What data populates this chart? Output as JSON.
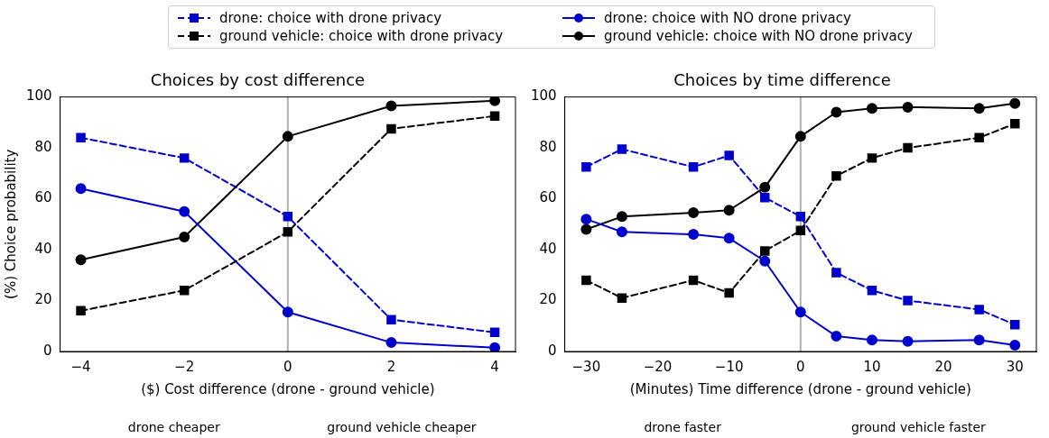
{
  "chart_data": [
    {
      "type": "line",
      "title": "Choices by cost difference",
      "xlabel": "($) Cost difference (drone - ground vehicle)",
      "ylabel": "(%) Choice probability",
      "x": [
        -4,
        -2,
        0,
        2,
        4
      ],
      "xlim": [
        -4.4,
        4.4
      ],
      "xticks": [
        -4,
        -2,
        0,
        2,
        4
      ],
      "ylim": [
        0,
        100
      ],
      "yticks": [
        0,
        20,
        40,
        60,
        80,
        100
      ],
      "grid": false,
      "legend": "top",
      "ref_lines": [
        {
          "axis": "x",
          "value": 0,
          "color": "#b0b0b0"
        }
      ],
      "annotations": [
        "drone cheaper",
        "ground vehicle cheaper"
      ],
      "series": [
        {
          "name": "drone: choice with drone privacy",
          "color": "#0000cc",
          "marker": "square",
          "line_style": "dashed",
          "values": [
            84,
            76,
            53,
            12.5,
            7.5
          ]
        },
        {
          "name": "ground vehicle: choice with drone privacy",
          "color": "#000000",
          "marker": "square",
          "line_style": "dashed",
          "values": [
            16,
            24,
            47,
            87.5,
            92.5
          ]
        },
        {
          "name": "drone: choice with NO drone privacy",
          "color": "#0000cc",
          "marker": "circle",
          "line_style": "solid",
          "values": [
            64,
            55,
            15.5,
            3.5,
            1.5
          ]
        },
        {
          "name": "ground vehicle: choice with NO drone privacy",
          "color": "#000000",
          "marker": "circle",
          "line_style": "solid",
          "values": [
            36,
            45,
            84.5,
            96.5,
            98.5
          ]
        }
      ]
    },
    {
      "type": "line",
      "title": "Choices by time difference",
      "xlabel": "(Minutes) Time difference (drone - ground vehicle)",
      "x": [
        -30,
        -25,
        -15,
        -10,
        -5,
        0,
        5,
        10,
        15,
        25,
        30
      ],
      "xlim": [
        -33,
        33
      ],
      "xticks": [
        -30,
        -20,
        -10,
        0,
        10,
        20,
        30
      ],
      "ylim": [
        0,
        100
      ],
      "yticks": [
        0,
        20,
        40,
        60,
        80,
        100
      ],
      "grid": false,
      "ref_lines": [
        {
          "axis": "x",
          "value": 0,
          "color": "#b0b0b0"
        }
      ],
      "annotations": [
        "drone faster",
        "ground vehicle faster"
      ],
      "series": [
        {
          "color": "#0000cc",
          "marker": "square",
          "line_style": "dashed",
          "values": [
            72.5,
            79.5,
            72.5,
            77,
            60.5,
            53,
            31,
            24,
            20,
            16.5,
            10.5
          ]
        },
        {
          "color": "#000000",
          "marker": "square",
          "line_style": "dashed",
          "values": [
            28,
            21,
            28,
            23,
            39.5,
            47.5,
            69,
            76,
            80,
            84,
            89.5
          ]
        },
        {
          "color": "#0000cc",
          "marker": "circle",
          "line_style": "solid",
          "values": [
            52,
            47,
            46,
            44.5,
            35.5,
            15.5,
            6,
            4.5,
            4,
            4.5,
            2.5
          ]
        },
        {
          "color": "#000000",
          "marker": "circle",
          "line_style": "solid",
          "values": [
            48,
            53,
            54.5,
            55.5,
            64.5,
            84.5,
            94,
            95.5,
            96,
            95.5,
            97.5
          ]
        }
      ]
    }
  ]
}
